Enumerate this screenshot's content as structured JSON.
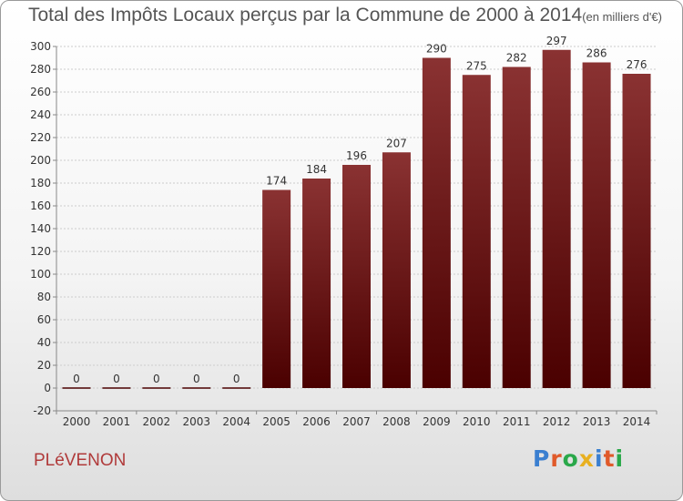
{
  "header": {
    "title": "Total des Impôts Locaux perçus par la Commune de 2000 à 2014",
    "unit": "(en milliers d'€)"
  },
  "footer": {
    "commune": "PLéVENON",
    "logo_letters": [
      "P",
      "r",
      "o",
      "x",
      "i",
      "t",
      "i"
    ],
    "logo_colors": [
      "#3a7fd0",
      "#e05a2a",
      "#2aa84a",
      "#e8b020",
      "#3a7fd0",
      "#e05a2a",
      "#2aa84a"
    ]
  },
  "colors": {
    "bar_top": "#8a3232",
    "bar_bottom": "#4a0000",
    "grid": "#cccccc",
    "axis": "#888888"
  },
  "chart_data": {
    "type": "bar",
    "title": "Total des Impôts Locaux perçus par la Commune de 2000 à 2014",
    "categories": [
      "2000",
      "2001",
      "2002",
      "2003",
      "2004",
      "2005",
      "2006",
      "2007",
      "2008",
      "2009",
      "2010",
      "2011",
      "2012",
      "2013",
      "2014"
    ],
    "values": [
      0,
      0,
      0,
      0,
      0,
      174,
      184,
      196,
      207,
      290,
      275,
      282,
      297,
      286,
      276
    ],
    "ylim": [
      -20,
      300
    ],
    "yticks": [
      -20,
      0,
      20,
      40,
      60,
      80,
      100,
      120,
      140,
      160,
      180,
      200,
      220,
      240,
      260,
      280,
      300
    ],
    "grid": true,
    "legend": "none"
  }
}
